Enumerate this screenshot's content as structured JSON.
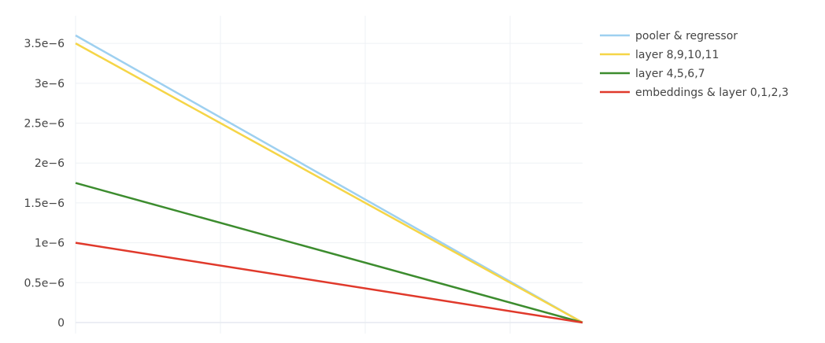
{
  "chart_data": {
    "type": "line",
    "x": [
      0,
      1
    ],
    "xlim": [
      0,
      1
    ],
    "ylim": [
      0,
      3.7e-06
    ],
    "yticks": [
      {
        "value": 0,
        "label": "0"
      },
      {
        "value": 5e-07,
        "label": "0.5e−6"
      },
      {
        "value": 1e-06,
        "label": "1e−6"
      },
      {
        "value": 1.5e-06,
        "label": "1.5e−6"
      },
      {
        "value": 2e-06,
        "label": "2e−6"
      },
      {
        "value": 2.5e-06,
        "label": "2.5e−6"
      },
      {
        "value": 3e-06,
        "label": "3e−6"
      },
      {
        "value": 3.5e-06,
        "label": "3.5e−6"
      }
    ],
    "vertical_gridlines": [
      0,
      0.2857,
      0.5714,
      0.8571
    ],
    "grid": true,
    "legend_position": "top-right",
    "series": [
      {
        "name": "pooler & regressor",
        "color": "#9ed0f0",
        "values": [
          3.6e-06,
          0
        ]
      },
      {
        "name": "layer 8,9,10,11",
        "color": "#f5d547",
        "values": [
          3.5e-06,
          0
        ]
      },
      {
        "name": "layer 4,5,6,7",
        "color": "#3c8c2e",
        "values": [
          1.75e-06,
          0
        ]
      },
      {
        "name": "embeddings & layer 0,1,2,3",
        "color": "#e0392b",
        "values": [
          1e-06,
          0
        ]
      }
    ]
  }
}
